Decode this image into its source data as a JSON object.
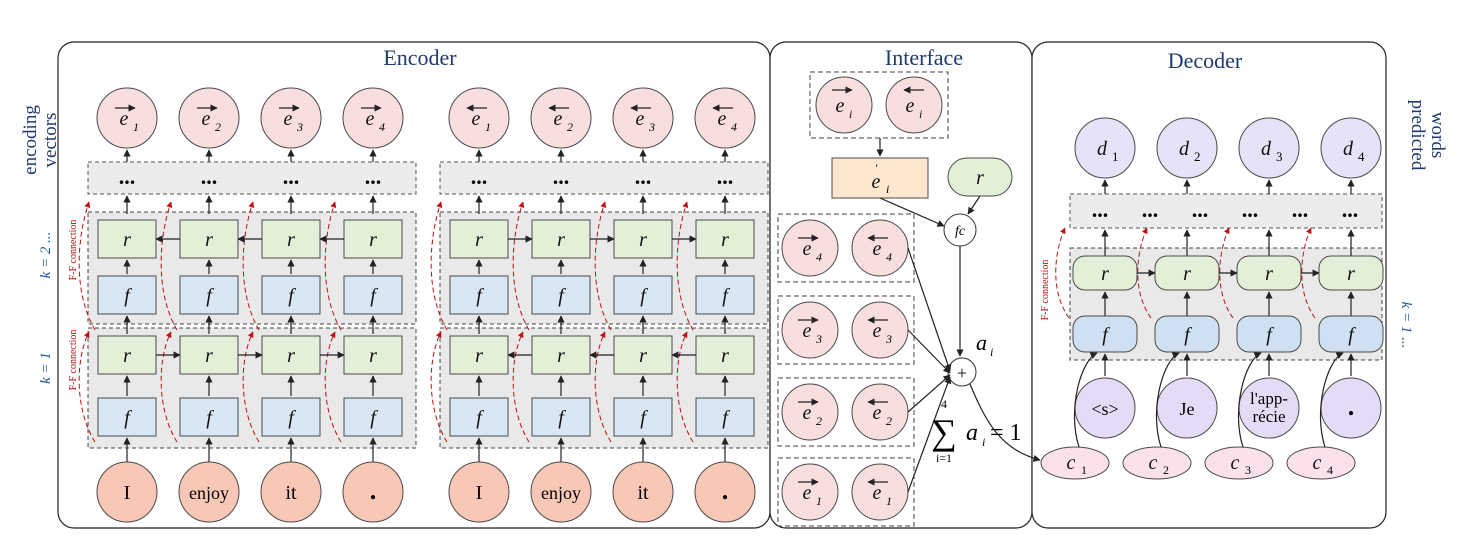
{
  "panels": {
    "encoder_title": "Encoder",
    "interface_title": "Interface",
    "decoder_title": "Decoder"
  },
  "side_labels": {
    "encoding_vectors": [
      "encoding",
      "vectors"
    ],
    "predicted_words": [
      "predicted",
      "words"
    ],
    "k_upper": "k = 2 ...",
    "k_lower": "k = 1",
    "k_decoder": "k = 1 ...",
    "ff_connection": "F-F connection"
  },
  "encoder": {
    "input_words": [
      "I",
      "enjoy",
      "it",
      "."
    ],
    "forward_outputs": [
      "1",
      "2",
      "3",
      "4"
    ],
    "backward_outputs": [
      "1",
      "2",
      "3",
      "4"
    ],
    "r_label": "r",
    "f_label": "f",
    "ellipsis": "..."
  },
  "interface": {
    "pair_index": "i",
    "e_prime_sub": "i",
    "r_label": "r",
    "fc_label": "fc",
    "plus_label": "+",
    "attention_label": "a",
    "attention_sub": "i",
    "stacks": [
      "4",
      "3",
      "2",
      "1"
    ],
    "sum_formula": {
      "upper": "4",
      "lower": "i=1",
      "body": "a",
      "body_sub": "i",
      "rhs": "= 1"
    }
  },
  "decoder": {
    "outputs": [
      "1",
      "2",
      "3",
      "4"
    ],
    "output_letter": "d",
    "input_words": [
      "<s>",
      "Je",
      "l'app-",
      "."
    ],
    "input_word_3_line2": "récie",
    "context_letter": "c",
    "contexts": [
      "1",
      "2",
      "3",
      "4"
    ],
    "r_label": "r",
    "f_label": "f",
    "ellipsis": "..."
  },
  "colors": {
    "title_blue": "#1f3a6e",
    "r_green": "#e3efd6",
    "f_blue": "#d9e6f4",
    "e_pink": "#f8dede",
    "word_salmon": "#f8c7b6",
    "d_lavender": "#e4e3f7",
    "c_pink": "#fbe2ea",
    "eprime_orange": "#fde7cf",
    "ff_red": "#c01010"
  }
}
